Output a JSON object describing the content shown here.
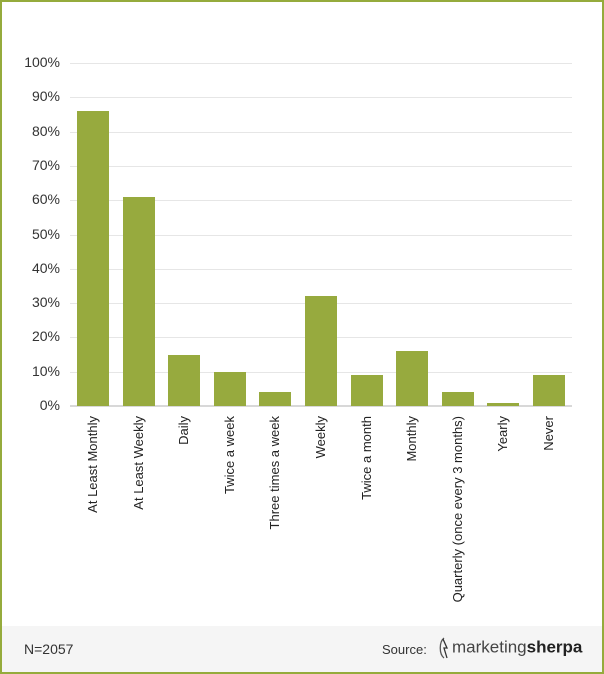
{
  "chart_data": {
    "type": "bar",
    "title": "",
    "xlabel": "",
    "ylabel": "",
    "ylim": [
      0,
      100
    ],
    "yticks": [
      "0%",
      "10%",
      "20%",
      "30%",
      "40%",
      "50%",
      "60%",
      "70%",
      "80%",
      "90%",
      "100%"
    ],
    "grid": true,
    "categories": [
      "At Least Monthly",
      "At Least Weekly",
      "Daily",
      "Twice a week",
      "Three times a week",
      "Weekly",
      "Twice a month",
      "Monthly",
      "Quarterly (once every 3 months)",
      "Yearly",
      "Never"
    ],
    "values": [
      86,
      61,
      15,
      10,
      4,
      32,
      9,
      16,
      4,
      1,
      9
    ],
    "bar_color": "#97aa3e"
  },
  "footer": {
    "n_label": "N=2057",
    "source_label": "Source:",
    "logo_light": "marketing",
    "logo_bold": "sherpa"
  },
  "colors": {
    "frame": "#95ab3c",
    "bar": "#97aa3e",
    "footer_bg": "#f5f5f5"
  }
}
